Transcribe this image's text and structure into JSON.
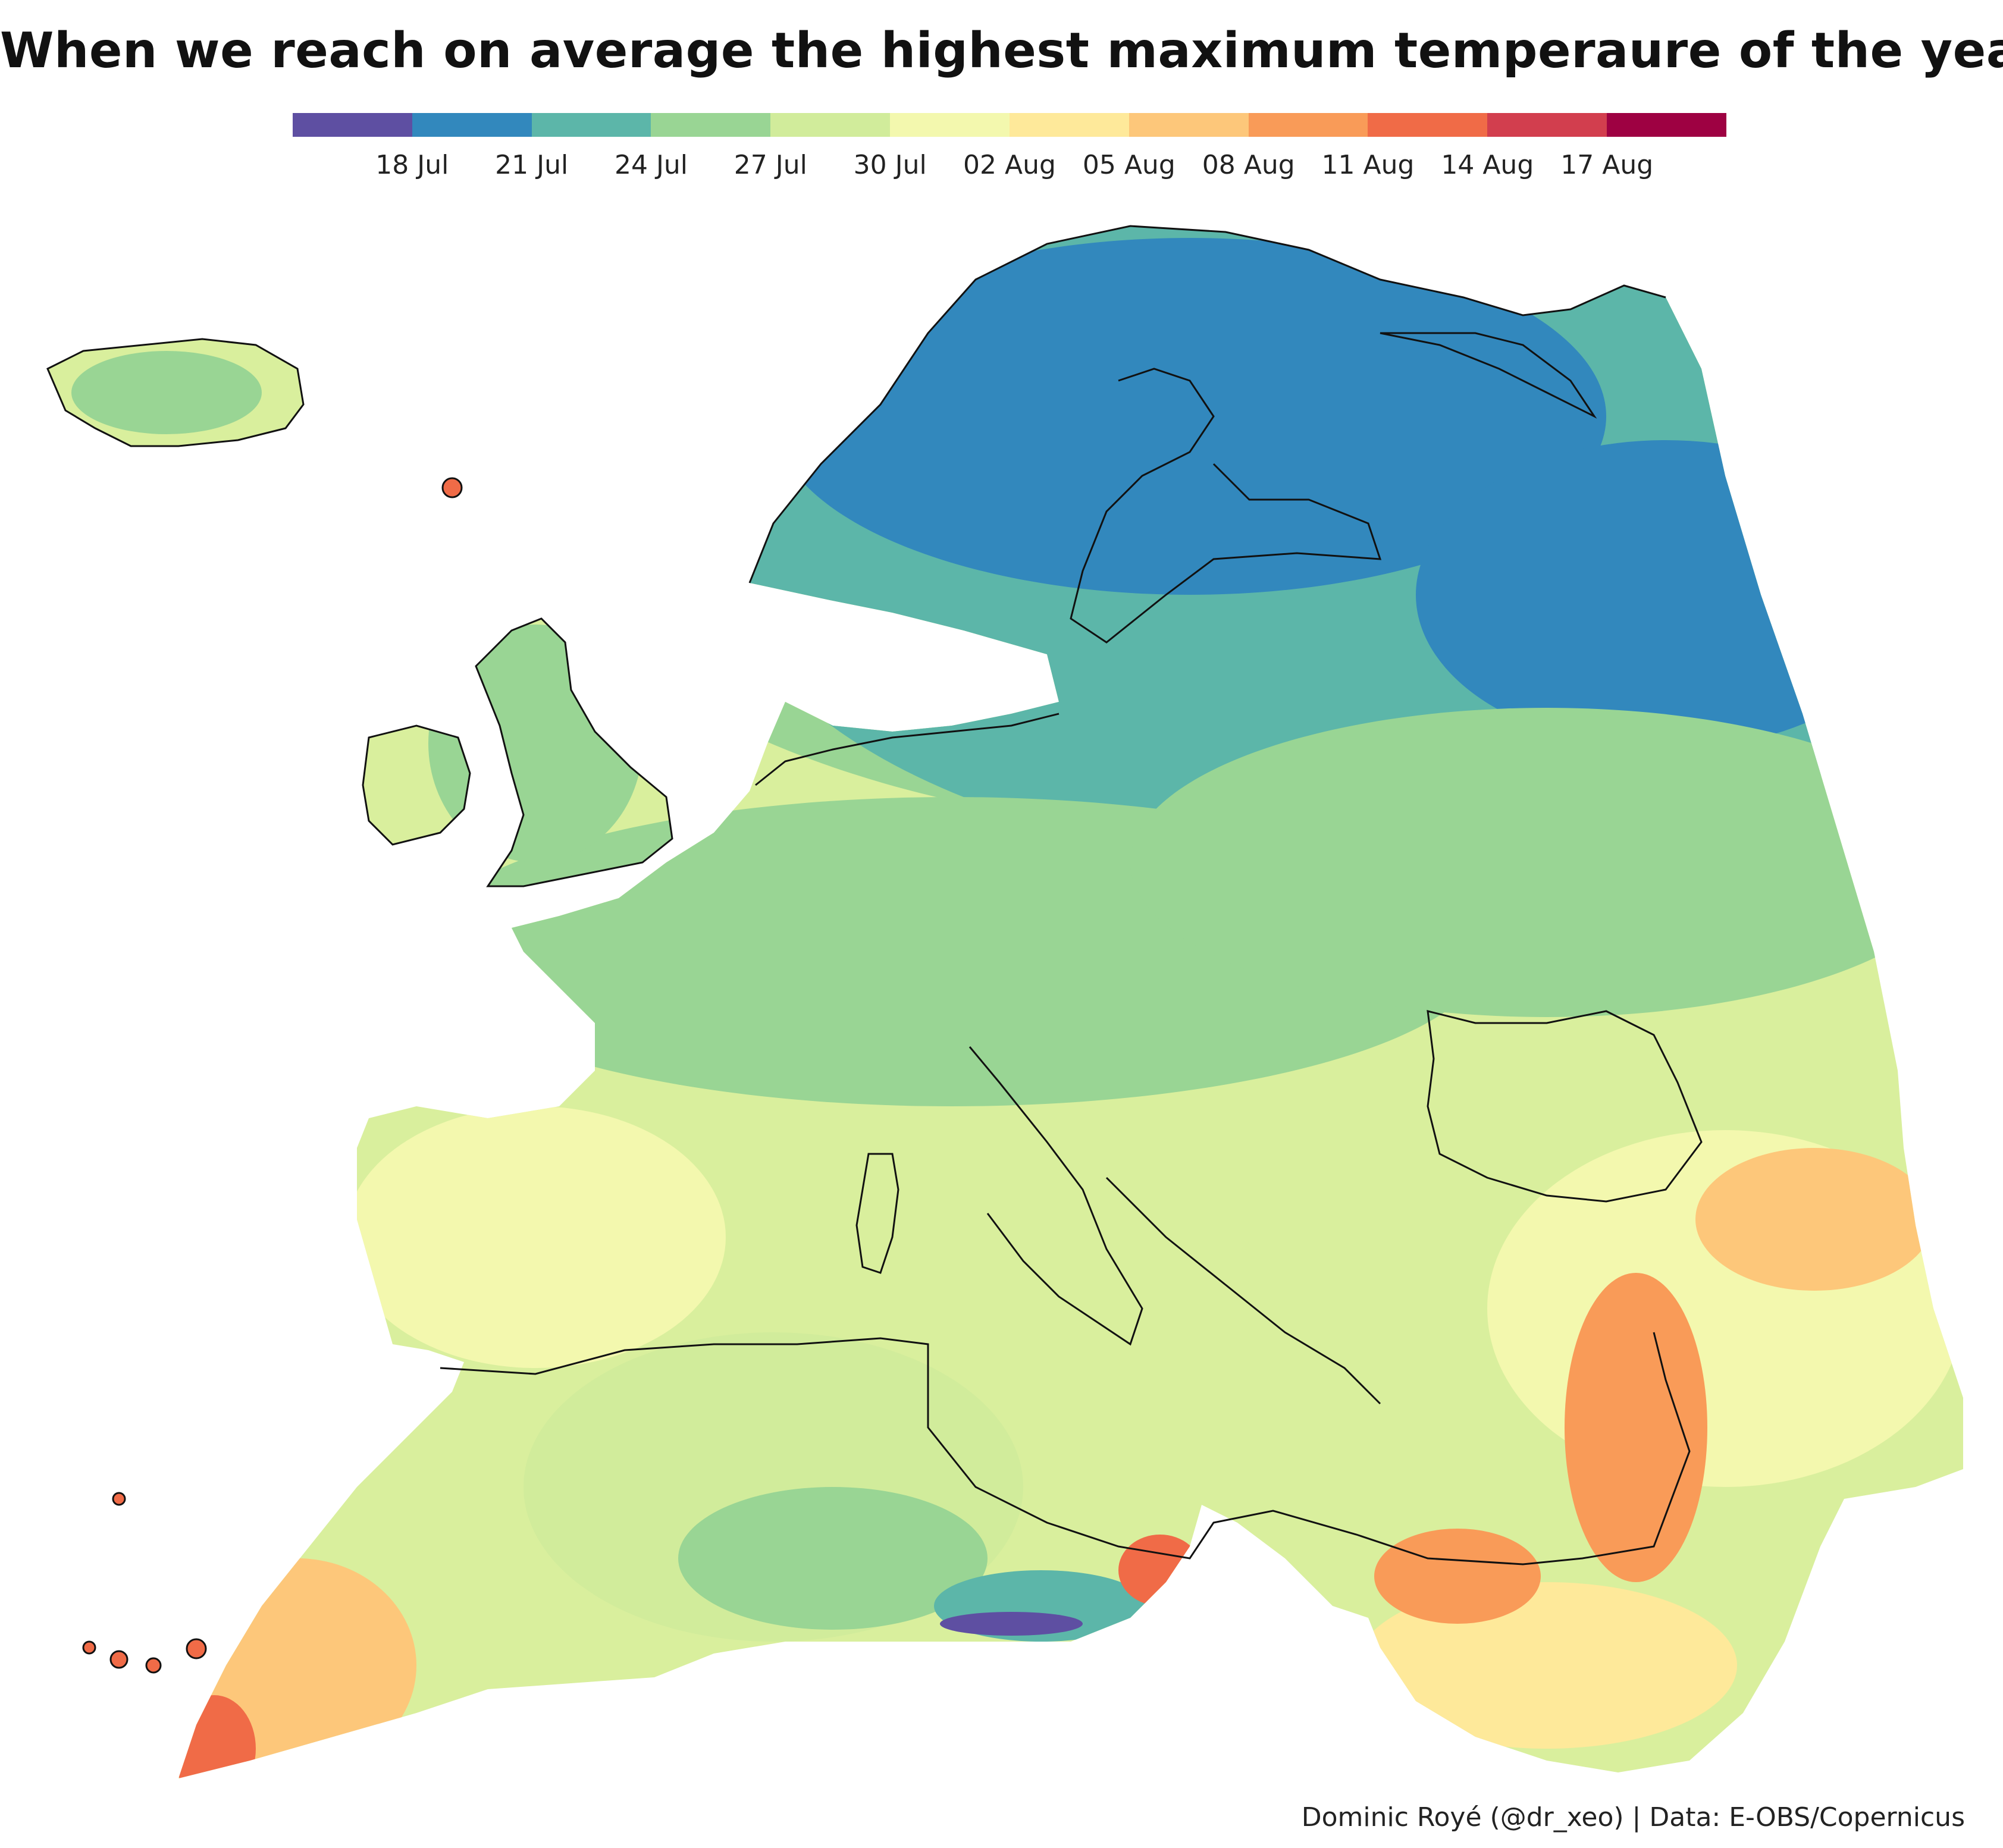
{
  "title": "When we reach on average the highest maximum temperaure of the year?",
  "legend": {
    "colors": [
      "#5e4fa2",
      "#3288bd",
      "#5cb6a9",
      "#99d594",
      "#d1ec9b",
      "#f3f8ae",
      "#fee99a",
      "#fdc77a",
      "#f99b58",
      "#f06b47",
      "#d23e4e",
      "#9e0142"
    ],
    "labels": [
      "18 Jul",
      "21 Jul",
      "24 Jul",
      "27 Jul",
      "30 Jul",
      "02 Aug",
      "05 Aug",
      "08 Aug",
      "11 Aug",
      "14 Aug",
      "17 Aug"
    ]
  },
  "caption": "Dominic Royé (@dr_xeo) | Data: E-OBS/Copernicus"
}
